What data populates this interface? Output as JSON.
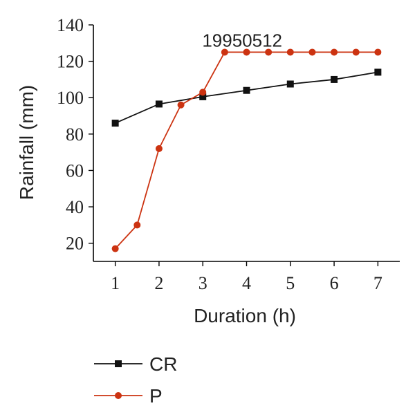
{
  "chart_data": {
    "type": "line",
    "xlabel": "Duration (h)",
    "ylabel": "Rainfall (mm)",
    "xlim": [
      0.5,
      7.5
    ],
    "ylim": [
      10,
      140
    ],
    "xticks": [
      1,
      2,
      3,
      4,
      5,
      6,
      7
    ],
    "yticks": [
      20,
      40,
      60,
      80,
      100,
      120,
      140
    ],
    "grid": false,
    "legend_position": "bottom-left",
    "annotation": {
      "text": "19950512",
      "x": 3.9,
      "y": 128
    },
    "series": [
      {
        "name": "CR",
        "color": "#111111",
        "marker": "square",
        "x": [
          1,
          2,
          3,
          4,
          5,
          6,
          7
        ],
        "y": [
          86,
          96.5,
          100.5,
          104,
          107.5,
          110,
          114
        ]
      },
      {
        "name": "P",
        "color": "#cc3311",
        "marker": "circle",
        "x": [
          1,
          1.5,
          2,
          2.5,
          3,
          3.5,
          4,
          4.5,
          5,
          5.5,
          6,
          6.5,
          7
        ],
        "y": [
          17,
          30,
          72,
          96,
          103,
          125,
          125,
          125,
          125,
          125,
          125,
          125,
          125
        ]
      }
    ]
  }
}
